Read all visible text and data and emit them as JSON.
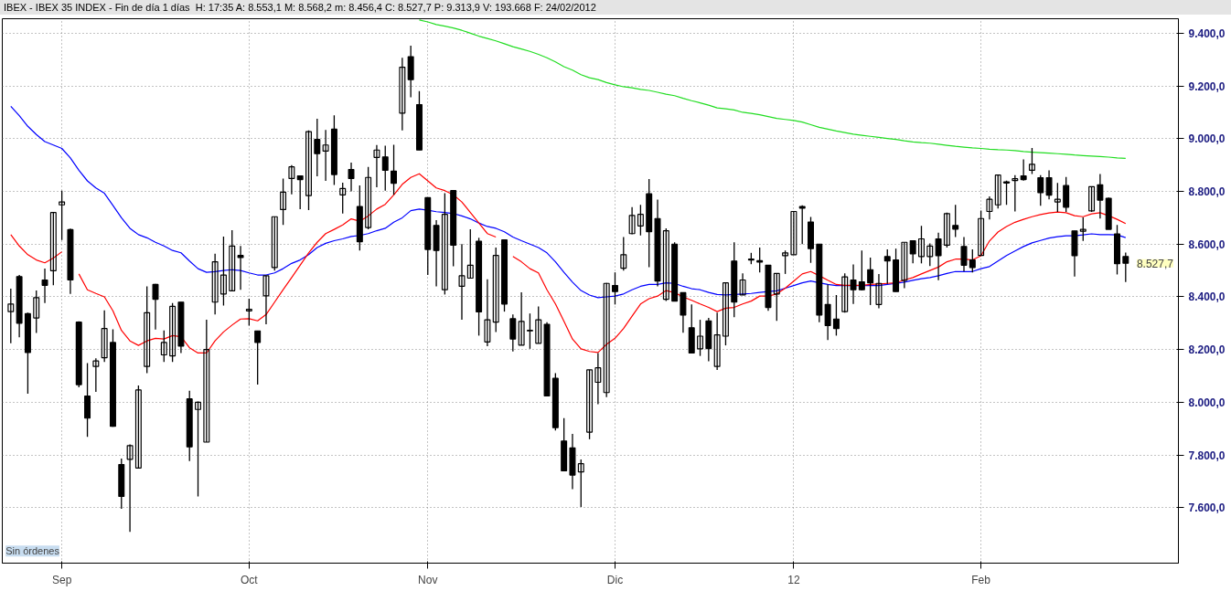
{
  "chart_data": {
    "type": "candlestick",
    "title": "IBEX - IBEX 35 INDEX - Fin de día 1 días",
    "subtitle": "H: 17:35  A: 8.553,1  M: 8.568,2  m: 8.456,4  C: 8.527,7  P: 9.313,9  V: 193.668  F: 24/02/2012",
    "categories": [
      null,
      null,
      null,
      null,
      null,
      null,
      "Sep",
      null,
      null,
      null,
      null,
      null,
      null,
      null,
      null,
      null,
      null,
      null,
      null,
      null,
      null,
      null,
      null,
      null,
      null,
      null,
      null,
      null,
      "Oct",
      null,
      null,
      null,
      null,
      null,
      null,
      null,
      null,
      null,
      null,
      null,
      null,
      null,
      null,
      null,
      null,
      null,
      null,
      null,
      null,
      "Nov",
      null,
      null,
      null,
      null,
      null,
      null,
      null,
      null,
      null,
      null,
      null,
      null,
      null,
      null,
      null,
      null,
      null,
      null,
      null,
      null,
      null,
      "Dic",
      null,
      null,
      null,
      null,
      null,
      null,
      null,
      null,
      null,
      null,
      null,
      null,
      null,
      null,
      null,
      null,
      null,
      null,
      null,
      null,
      "12",
      null,
      null,
      null,
      null,
      null,
      null,
      null,
      null,
      null,
      null,
      null,
      null,
      null,
      null,
      null,
      null,
      null,
      null,
      null,
      null,
      null,
      "Feb",
      null,
      null,
      null,
      null,
      null,
      null,
      null,
      null,
      null,
      null,
      null,
      null,
      null,
      null,
      null,
      null,
      null
    ],
    "ohlc": [
      [
        8344,
        8431,
        8224,
        8373
      ],
      [
        8477,
        8483,
        8247,
        8300
      ],
      [
        8336,
        8340,
        8033,
        8189
      ],
      [
        8320,
        8424,
        8263,
        8397
      ],
      [
        8464,
        8507,
        8377,
        8444
      ],
      [
        8499,
        8720,
        8444,
        8720
      ],
      [
        8749,
        8803,
        8616,
        8760
      ],
      [
        8655,
        8659,
        8411,
        8464
      ],
      [
        8304,
        8307,
        8057,
        8067
      ],
      [
        8024,
        8149,
        7869,
        7940
      ],
      [
        8136,
        8167,
        8040,
        8157
      ],
      [
        8169,
        8349,
        8153,
        8280
      ],
      [
        8227,
        8277,
        7907,
        7909
      ],
      [
        7764,
        7787,
        7596,
        7643
      ],
      [
        7784,
        7840,
        7509,
        7836
      ],
      [
        7751,
        8064,
        7751,
        8047
      ],
      [
        8136,
        8440,
        8111,
        8340
      ],
      [
        8447,
        8449,
        8276,
        8391
      ],
      [
        8180,
        8273,
        8153,
        8227
      ],
      [
        8176,
        8377,
        8153,
        8364
      ],
      [
        8380,
        8380,
        8187,
        8213
      ],
      [
        8013,
        8044,
        7777,
        7831
      ],
      [
        7973,
        8003,
        7643,
        8000
      ],
      [
        7849,
        8313,
        7849,
        8200
      ],
      [
        8380,
        8564,
        8333,
        8533
      ],
      [
        8411,
        8629,
        8367,
        8483
      ],
      [
        8423,
        8653,
        8423,
        8593
      ],
      [
        8557,
        8593,
        8427,
        8549
      ],
      [
        8347,
        8393,
        8291,
        8353
      ],
      [
        8271,
        8271,
        8067,
        8227
      ],
      [
        8404,
        8480,
        8296,
        8480
      ],
      [
        8511,
        8704,
        8500,
        8704
      ],
      [
        8731,
        8849,
        8673,
        8797
      ],
      [
        8849,
        8900,
        8789,
        8893
      ],
      [
        8859,
        8859,
        8733,
        8845
      ],
      [
        8784,
        9031,
        8729,
        9027
      ],
      [
        8997,
        9076,
        8857,
        8943
      ],
      [
        8953,
        9033,
        8840,
        8976
      ],
      [
        9036,
        9089,
        8824,
        8864
      ],
      [
        8787,
        8833,
        8716,
        8811
      ],
      [
        8883,
        8909,
        8800,
        8849
      ],
      [
        8743,
        8823,
        8576,
        8609
      ],
      [
        8663,
        8893,
        8656,
        8853
      ],
      [
        8929,
        8976,
        8816,
        8957
      ],
      [
        8931,
        8973,
        8803,
        8880
      ],
      [
        8877,
        8977,
        8787,
        8831
      ],
      [
        9097,
        9307,
        9031,
        9271
      ],
      [
        9311,
        9353,
        9157,
        9224
      ],
      [
        9129,
        9180,
        8957,
        8957
      ],
      [
        8776,
        8776,
        8483,
        8580
      ],
      [
        8671,
        8691,
        8440,
        8576
      ],
      [
        8427,
        8793,
        8409,
        8713
      ],
      [
        8803,
        8803,
        8516,
        8596
      ],
      [
        8440,
        8600,
        8313,
        8480
      ],
      [
        8471,
        8656,
        8471,
        8520
      ],
      [
        8611,
        8624,
        8253,
        8343
      ],
      [
        8229,
        8467,
        8213,
        8313
      ],
      [
        8304,
        8587,
        8267,
        8557
      ],
      [
        8616,
        8616,
        8344,
        8373
      ],
      [
        8317,
        8333,
        8193,
        8240
      ],
      [
        8217,
        8417,
        8217,
        8307
      ],
      [
        8273,
        8337,
        8203,
        8271
      ],
      [
        8224,
        8364,
        8224,
        8313
      ],
      [
        8296,
        8304,
        8024,
        8024
      ],
      [
        8091,
        8111,
        7893,
        7904
      ],
      [
        7853,
        7940,
        7740,
        7740
      ],
      [
        7827,
        7880,
        7671,
        7724
      ],
      [
        7736,
        7783,
        7603,
        7767
      ],
      [
        7887,
        8123,
        7860,
        8123
      ],
      [
        8076,
        8187,
        7993,
        8131
      ],
      [
        8037,
        8453,
        8020,
        8451
      ],
      [
        8443,
        8493,
        8371,
        8420
      ],
      [
        8509,
        8627,
        8500,
        8560
      ],
      [
        8640,
        8740,
        8637,
        8709
      ],
      [
        8669,
        8749,
        8633,
        8713
      ],
      [
        8791,
        8847,
        8513,
        8647
      ],
      [
        8697,
        8769,
        8440,
        8460
      ],
      [
        8391,
        8660,
        8384,
        8651
      ],
      [
        8600,
        8607,
        8384,
        8384
      ],
      [
        8416,
        8416,
        8264,
        8331
      ],
      [
        8283,
        8371,
        8187,
        8187
      ],
      [
        8203,
        8313,
        8176,
        8251
      ],
      [
        8309,
        8320,
        8156,
        8204
      ],
      [
        8136,
        8340,
        8123,
        8256
      ],
      [
        8251,
        8453,
        8216,
        8453
      ],
      [
        8536,
        8607,
        8323,
        8380
      ],
      [
        8407,
        8489,
        8407,
        8464
      ],
      [
        8543,
        8567,
        8524,
        8540
      ],
      [
        8537,
        8587,
        8493,
        8532
      ],
      [
        8520,
        8520,
        8347,
        8360
      ],
      [
        8411,
        8489,
        8309,
        8489
      ],
      [
        8556,
        8576,
        8487,
        8567
      ],
      [
        8560,
        8724,
        8560,
        8724
      ],
      [
        8743,
        8747,
        8600,
        8736
      ],
      [
        8684,
        8703,
        8529,
        8583
      ],
      [
        8600,
        8600,
        8304,
        8331
      ],
      [
        8371,
        8447,
        8236,
        8291
      ],
      [
        8316,
        8407,
        8253,
        8280
      ],
      [
        8344,
        8489,
        8340,
        8476
      ],
      [
        8464,
        8523,
        8373,
        8427
      ],
      [
        8457,
        8576,
        8424,
        8427
      ],
      [
        8503,
        8549,
        8369,
        8453
      ],
      [
        8371,
        8487,
        8357,
        8451
      ],
      [
        8553,
        8580,
        8449,
        8536
      ],
      [
        8540,
        8583,
        8420,
        8420
      ],
      [
        8463,
        8607,
        8433,
        8607
      ],
      [
        8613,
        8613,
        8527,
        8563
      ],
      [
        8553,
        8669,
        8527,
        8620
      ],
      [
        8553,
        8603,
        8517,
        8593
      ],
      [
        8620,
        8643,
        8463,
        8556
      ],
      [
        8596,
        8720,
        8587,
        8716
      ],
      [
        8671,
        8749,
        8627,
        8657
      ],
      [
        8591,
        8627,
        8497,
        8520
      ],
      [
        8540,
        8580,
        8493,
        8511
      ],
      [
        8557,
        8727,
        8557,
        8697
      ],
      [
        8724,
        8781,
        8694,
        8770
      ],
      [
        8749,
        8862,
        8735,
        8862
      ],
      [
        8832,
        8841,
        8749,
        8836
      ],
      [
        8841,
        8862,
        8724,
        8848
      ],
      [
        8859,
        8921,
        8841,
        8845
      ],
      [
        8880,
        8965,
        8866,
        8903
      ],
      [
        8852,
        8862,
        8746,
        8795
      ],
      [
        8852,
        8880,
        8770,
        8786
      ],
      [
        8760,
        8832,
        8722,
        8770
      ],
      [
        8822,
        8855,
        8722,
        8740
      ],
      [
        8650,
        8650,
        8477,
        8556
      ],
      [
        8649,
        8701,
        8612,
        8656
      ],
      [
        8726,
        8818,
        8722,
        8818
      ],
      [
        8825,
        8866,
        8697,
        8767
      ],
      [
        8774,
        8777,
        8656,
        8656
      ],
      [
        8639,
        8673,
        8485,
        8526
      ],
      [
        8553.1,
        8568.2,
        8456.4,
        8527.7
      ]
    ],
    "series": [
      {
        "type": "line",
        "color": "#0000ff",
        "values": [
          9123,
          9087,
          9047,
          9016,
          8989,
          8976,
          8963,
          8927,
          8880,
          8840,
          8813,
          8793,
          8747,
          8700,
          8660,
          8636,
          8624,
          8607,
          8593,
          8576,
          8567,
          8536,
          8507,
          8493,
          8496,
          8500,
          8503,
          8500,
          8491,
          8483,
          8483,
          8491,
          8507,
          8527,
          8540,
          8560,
          8587,
          8603,
          8613,
          8620,
          8629,
          8633,
          8640,
          8651,
          8660,
          8683,
          8700,
          8727,
          8733,
          8729,
          8723,
          8720,
          8716,
          8707,
          8696,
          8680,
          8667,
          8660,
          8647,
          8627,
          8613,
          8600,
          8587,
          8567,
          8533,
          8493,
          8456,
          8424,
          8407,
          8397,
          8400,
          8403,
          8411,
          8427,
          8440,
          8447,
          8447,
          8453,
          8451,
          8440,
          8431,
          8427,
          8417,
          8409,
          8407,
          8409,
          8411,
          8413,
          8417,
          8420,
          8423,
          8433,
          8443,
          8453,
          8460,
          8453,
          8447,
          8443,
          8443,
          8443,
          8443,
          8443,
          8443,
          8447,
          8451,
          8456,
          8463,
          8469,
          8473,
          8480,
          8489,
          8496,
          8496,
          8496,
          8507,
          8515,
          8536,
          8557,
          8574,
          8591,
          8605,
          8614,
          8623,
          8628,
          8632,
          8632,
          8635,
          8639,
          8636,
          8636,
          8635,
          8625
        ]
      },
      {
        "type": "line",
        "color": "#ff0000",
        "values": [
          8636,
          8593,
          8560,
          8540,
          8529,
          8547,
          8571,
          null,
          8487,
          8427,
          8413,
          8400,
          8347,
          8273,
          8233,
          8216,
          8233,
          8243,
          8240,
          8253,
          8249,
          8207,
          8187,
          8187,
          8233,
          8267,
          8293,
          8316,
          8317,
          8309,
          8333,
          8380,
          8427,
          8473,
          8520,
          8567,
          8607,
          8640,
          8656,
          8673,
          8696,
          8687,
          8707,
          8733,
          8751,
          8787,
          8827,
          8853,
          8867,
          8840,
          8813,
          8803,
          8787,
          8760,
          8720,
          8680,
          8640,
          8627,
          null,
          8553,
          8533,
          8507,
          8491,
          8427,
          8373,
          8307,
          8240,
          8203,
          8193,
          8189,
          8220,
          8243,
          8280,
          8327,
          8373,
          8393,
          8403,
          8424,
          8416,
          8400,
          8387,
          8373,
          8360,
          8344,
          8357,
          8360,
          8373,
          8384,
          8403,
          8403,
          8411,
          8433,
          8460,
          8487,
          8496,
          8480,
          8463,
          8447,
          8444,
          8444,
          8444,
          8447,
          8449,
          8451,
          8453,
          8464,
          8473,
          8487,
          8500,
          8513,
          8533,
          8543,
          8543,
          8540,
          8556,
          8612,
          8646,
          8667,
          8683,
          8694,
          8704,
          8712,
          8718,
          8722,
          8719,
          8708,
          8704,
          8715,
          8719,
          8708,
          8694,
          8678
        ]
      },
      {
        "type": "line",
        "color": "#22dd22",
        "values": [
          null,
          null,
          null,
          null,
          null,
          null,
          null,
          null,
          null,
          null,
          null,
          null,
          null,
          null,
          null,
          null,
          null,
          null,
          null,
          null,
          null,
          null,
          null,
          null,
          null,
          null,
          null,
          null,
          null,
          null,
          null,
          null,
          null,
          null,
          null,
          null,
          null,
          null,
          null,
          null,
          null,
          null,
          null,
          null,
          null,
          null,
          null,
          null,
          9450,
          9443,
          9433,
          9427,
          9420,
          9411,
          9400,
          9389,
          9380,
          9371,
          9360,
          9349,
          9340,
          9331,
          9320,
          9307,
          9291,
          9273,
          9260,
          9243,
          9231,
          9224,
          9213,
          9204,
          9197,
          9193,
          9187,
          9183,
          9176,
          9169,
          9163,
          9153,
          9144,
          9136,
          9127,
          9117,
          9113,
          9109,
          9100,
          9096,
          9091,
          9084,
          9077,
          9073,
          9069,
          9063,
          9053,
          9043,
          9036,
          9029,
          9023,
          9017,
          9013,
          9009,
          9005,
          9001,
          8997,
          8992,
          8988,
          8985,
          8983,
          8979,
          8975,
          8971,
          8968,
          8965,
          8963,
          8960,
          8958,
          8957,
          8955,
          8951,
          8949,
          8947,
          8945,
          8943,
          8941,
          8938,
          8936,
          8934,
          8932,
          8930,
          8927,
          8925
        ]
      }
    ],
    "ylim": [
      7390,
      9455
    ],
    "yticks": [
      {
        "value": 7600,
        "label": "7.600,0"
      },
      {
        "value": 7800,
        "label": "7.800,0"
      },
      {
        "value": 8000,
        "label": "8.000,0"
      },
      {
        "value": 8200,
        "label": "8.200,0"
      },
      {
        "value": 8400,
        "label": "8.400,0"
      },
      {
        "value": 8600,
        "label": "8.600,0"
      },
      {
        "value": 8800,
        "label": "8.800,0"
      },
      {
        "value": 9000,
        "label": "9.000,0"
      },
      {
        "value": 9200,
        "label": "9.200,0"
      },
      {
        "value": 9400,
        "label": "9.400,0"
      }
    ],
    "grid": true,
    "annotations": [
      "Sin órdenes",
      "8.527,7"
    ]
  }
}
